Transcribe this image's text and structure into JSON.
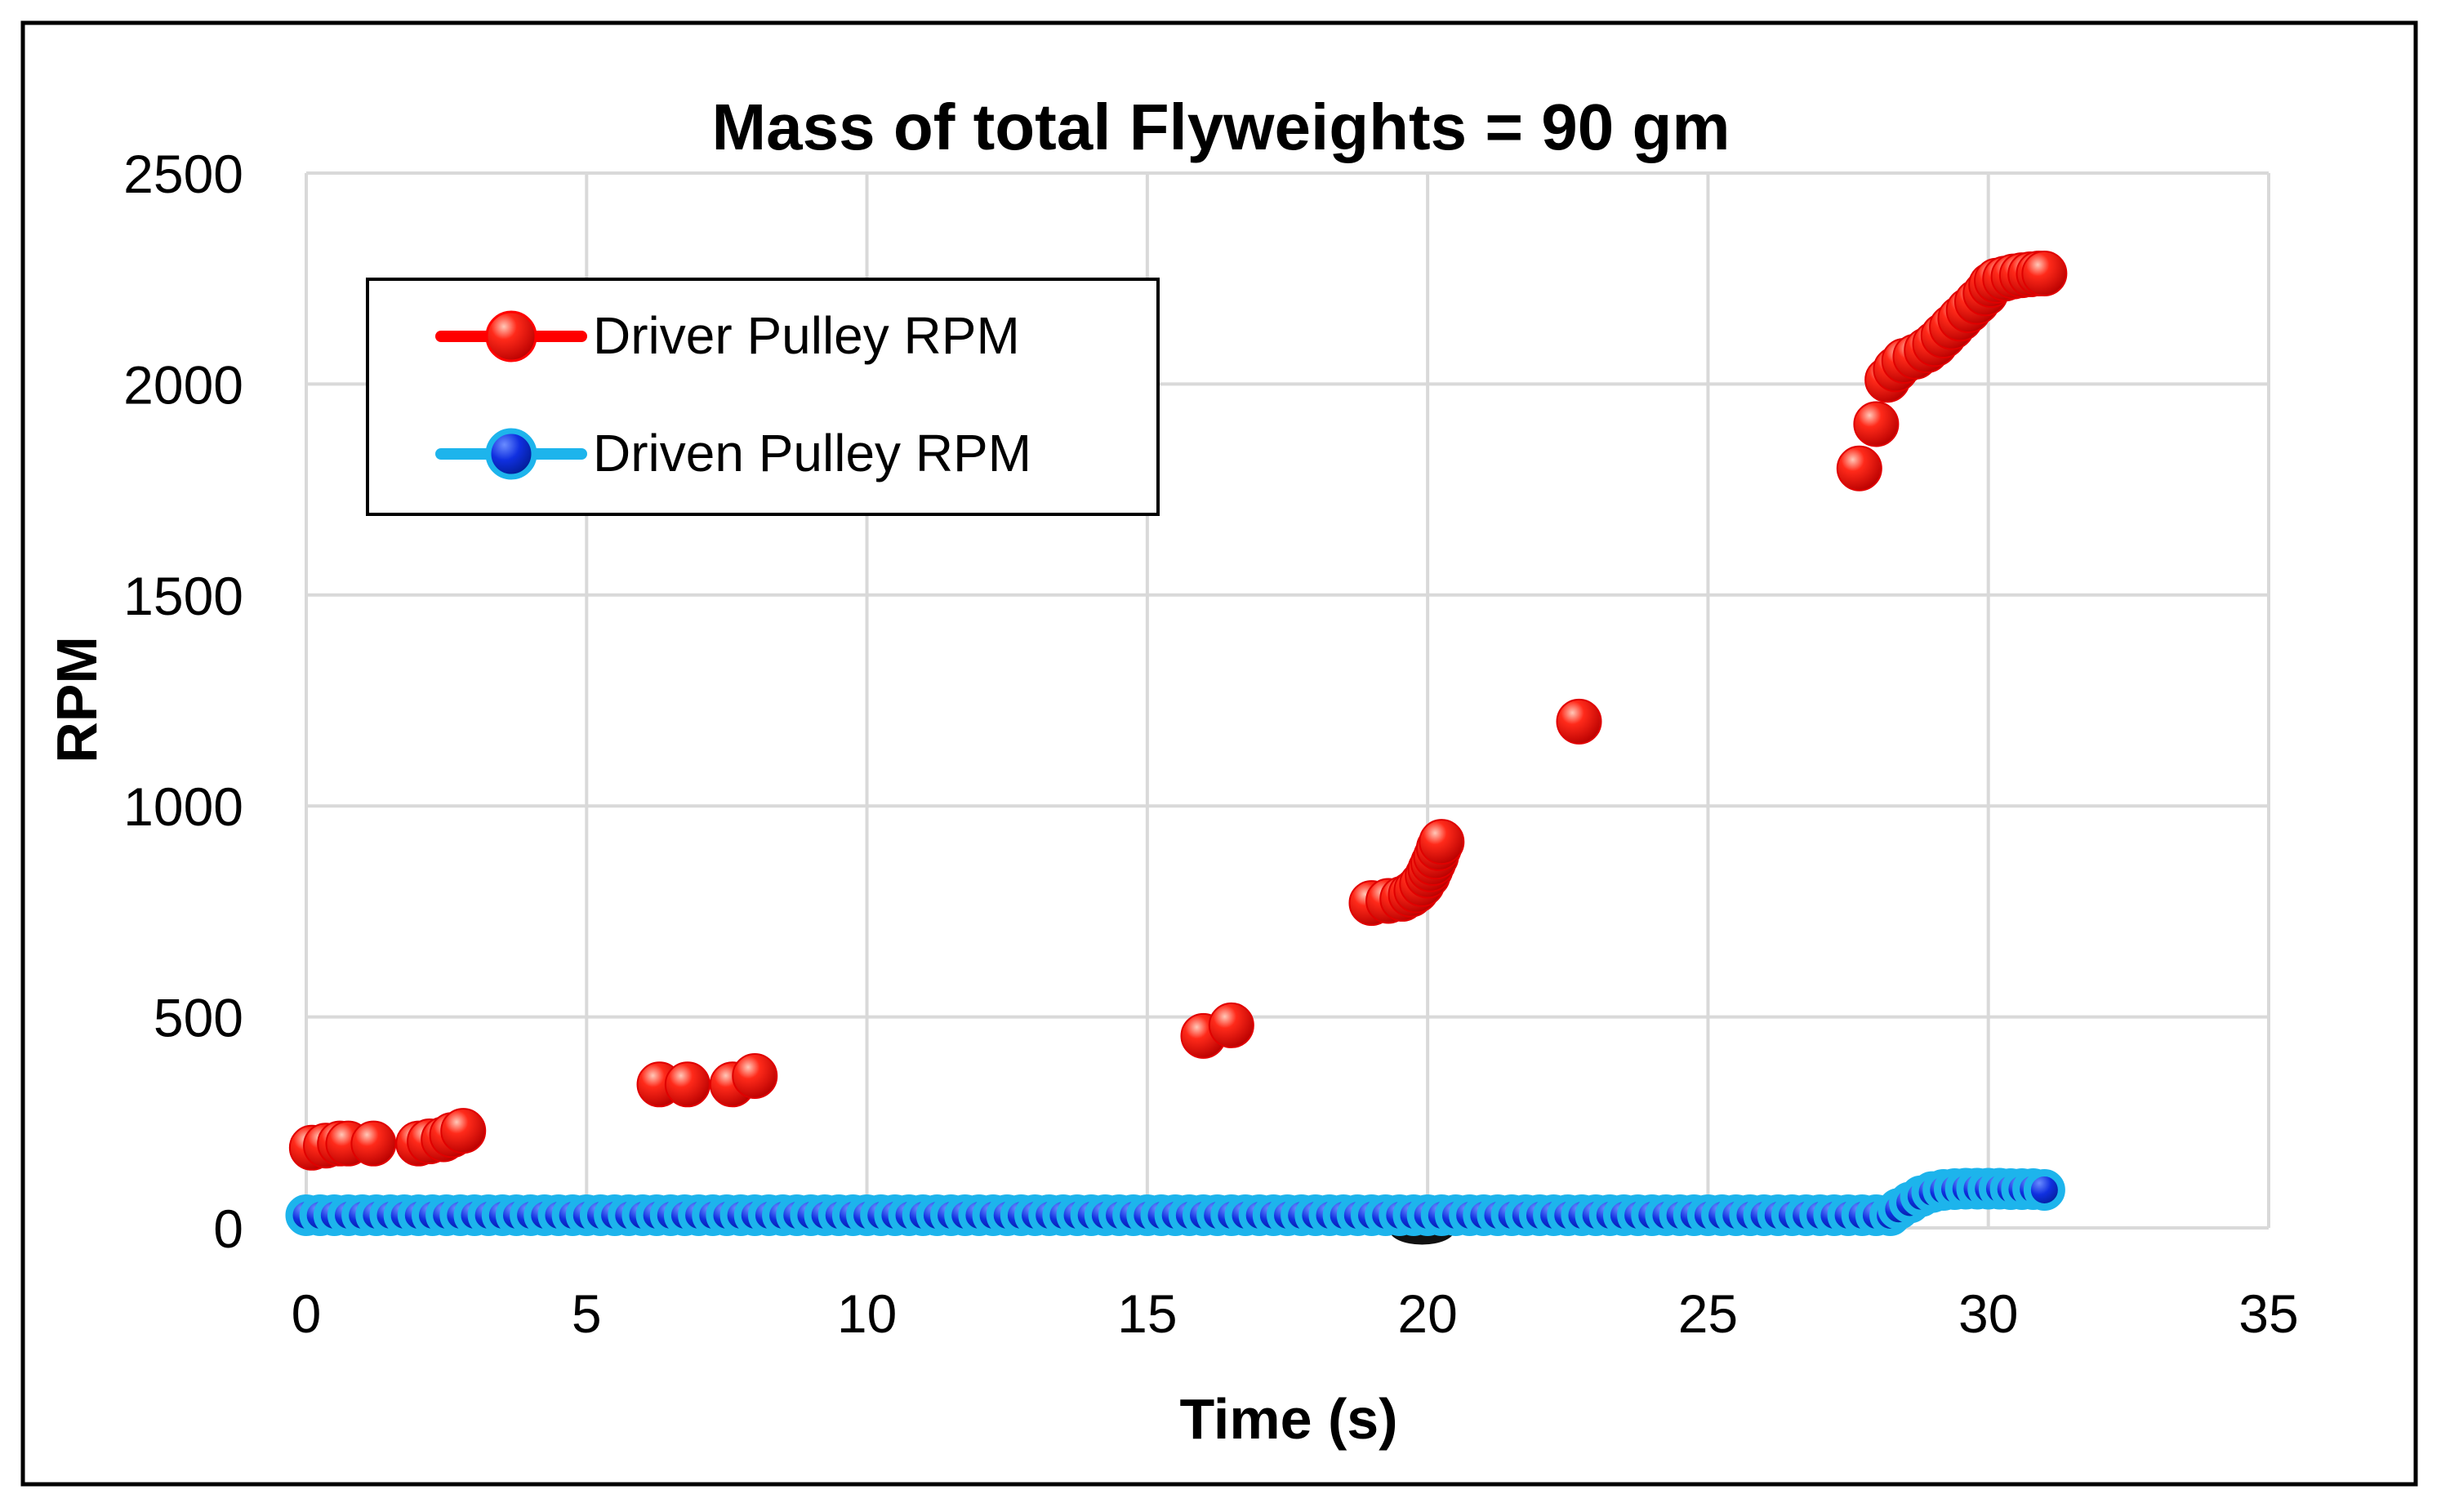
{
  "colors": {
    "background": "#ffffff",
    "frame": "#000000",
    "grid": "#d9d9d9",
    "driver": "#ff0000",
    "driver_highlight": "#ffb0a0",
    "driver_dark": "#c40000",
    "driven": "#1040e0",
    "driven_outline": "#1db4ec",
    "text": "#000000"
  },
  "chart_data": {
    "type": "scatter",
    "title": "Mass of total Flyweights = 90 gm",
    "xlabel": "Time (s)",
    "ylabel": "RPM",
    "xlim": [
      0,
      35
    ],
    "ylim": [
      0,
      2500
    ],
    "xticks": [
      0,
      5,
      10,
      15,
      20,
      25,
      30,
      35
    ],
    "yticks": [
      0,
      500,
      1000,
      1500,
      2000,
      2500
    ],
    "grid": true,
    "legend_position": "top-left",
    "series": [
      {
        "name": "Driver Pulley RPM",
        "marker_icon": "red-sphere-marker",
        "points": [
          [
            0.1,
            190
          ],
          [
            0.35,
            195
          ],
          [
            0.6,
            200
          ],
          [
            0.75,
            200
          ],
          [
            1.2,
            200
          ],
          [
            2.0,
            200
          ],
          [
            2.2,
            205
          ],
          [
            2.45,
            210
          ],
          [
            2.6,
            220
          ],
          [
            2.8,
            230
          ],
          [
            6.3,
            340
          ],
          [
            6.8,
            340
          ],
          [
            7.6,
            340
          ],
          [
            8.0,
            360
          ],
          [
            16.0,
            455
          ],
          [
            16.5,
            480
          ],
          [
            19.0,
            770
          ],
          [
            19.3,
            775
          ],
          [
            19.55,
            780
          ],
          [
            19.7,
            790
          ],
          [
            19.8,
            800
          ],
          [
            19.9,
            815
          ],
          [
            20.0,
            835
          ],
          [
            20.05,
            850
          ],
          [
            20.1,
            865
          ],
          [
            20.15,
            880
          ],
          [
            20.2,
            900
          ],
          [
            20.25,
            915
          ],
          [
            22.7,
            1200
          ],
          [
            27.7,
            1800
          ],
          [
            28.0,
            1905
          ],
          [
            28.2,
            2010
          ],
          [
            28.35,
            2035
          ],
          [
            28.5,
            2055
          ],
          [
            28.7,
            2065
          ],
          [
            28.9,
            2080
          ],
          [
            29.05,
            2095
          ],
          [
            29.2,
            2115
          ],
          [
            29.35,
            2135
          ],
          [
            29.5,
            2155
          ],
          [
            29.65,
            2175
          ],
          [
            29.8,
            2195
          ],
          [
            29.95,
            2215
          ],
          [
            30.05,
            2235
          ],
          [
            30.15,
            2245
          ],
          [
            30.3,
            2250
          ],
          [
            30.45,
            2255
          ],
          [
            30.6,
            2258
          ],
          [
            30.75,
            2260
          ],
          [
            30.9,
            2262
          ],
          [
            31.0,
            2262
          ]
        ]
      },
      {
        "name": "Driven Pulley RPM",
        "marker_icon": "blue-sphere-marker",
        "x_start": 0.0,
        "x_end": 28.3,
        "x_step": 0.25,
        "baseline_value": 30,
        "points": [
          [
            28.4,
            45
          ],
          [
            28.6,
            60
          ],
          [
            28.8,
            75
          ],
          [
            29.0,
            85
          ],
          [
            29.2,
            90
          ],
          [
            29.4,
            92
          ],
          [
            29.6,
            93
          ],
          [
            29.8,
            93
          ],
          [
            30.0,
            93
          ],
          [
            30.2,
            93
          ],
          [
            30.4,
            92
          ],
          [
            30.6,
            92
          ],
          [
            30.8,
            92
          ],
          [
            31.0,
            90
          ]
        ]
      }
    ]
  }
}
